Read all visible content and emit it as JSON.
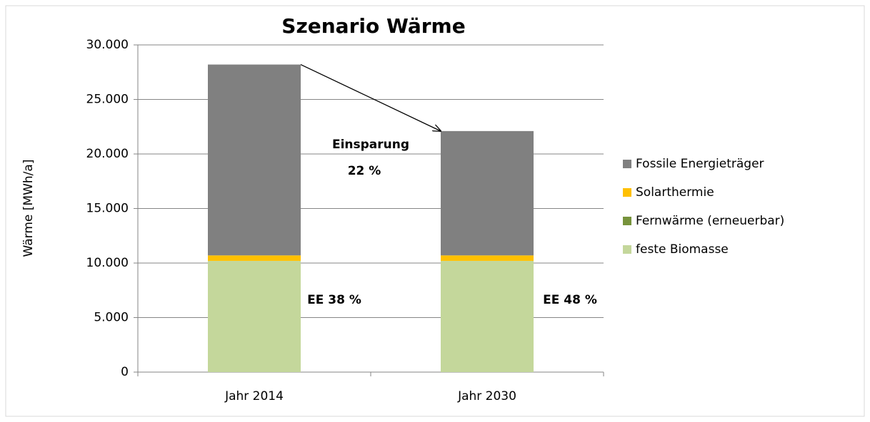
{
  "chart_data": {
    "type": "stacked_bar",
    "title": "Szenario Wärme",
    "y_label": "Wärme [MWh/a]",
    "categories": [
      "Jahr 2014",
      "Jahr 2030"
    ],
    "series": [
      {
        "name": "feste Biomasse",
        "color": "#c4d79b",
        "values": [
          10200,
          10200
        ]
      },
      {
        "name": "Fernwärme (erneuerbar)",
        "color": "#77933c",
        "values": [
          0,
          0
        ]
      },
      {
        "name": "Solarthermie",
        "color": "#ffc000",
        "values": [
          500,
          500
        ]
      },
      {
        "name": "Fossile Energieträger",
        "color": "#808080",
        "values": [
          17500,
          11400
        ]
      }
    ],
    "ylim": [
      0,
      30000
    ],
    "yticks": [
      0,
      {
        "value": 5000,
        "label": "5.000"
      },
      {
        "value": 10000,
        "label": "10.000"
      },
      {
        "value": 15000,
        "label": "15.000"
      },
      {
        "value": 20000,
        "label": "20.000"
      },
      {
        "value": 25000,
        "label": "25.000"
      },
      {
        "value": 30000,
        "label": "30.000"
      }
    ],
    "grid": true,
    "legend": "right",
    "annotations": [
      "Einsparung",
      "22 %",
      "EE 38 %",
      "EE 48 %"
    ]
  }
}
